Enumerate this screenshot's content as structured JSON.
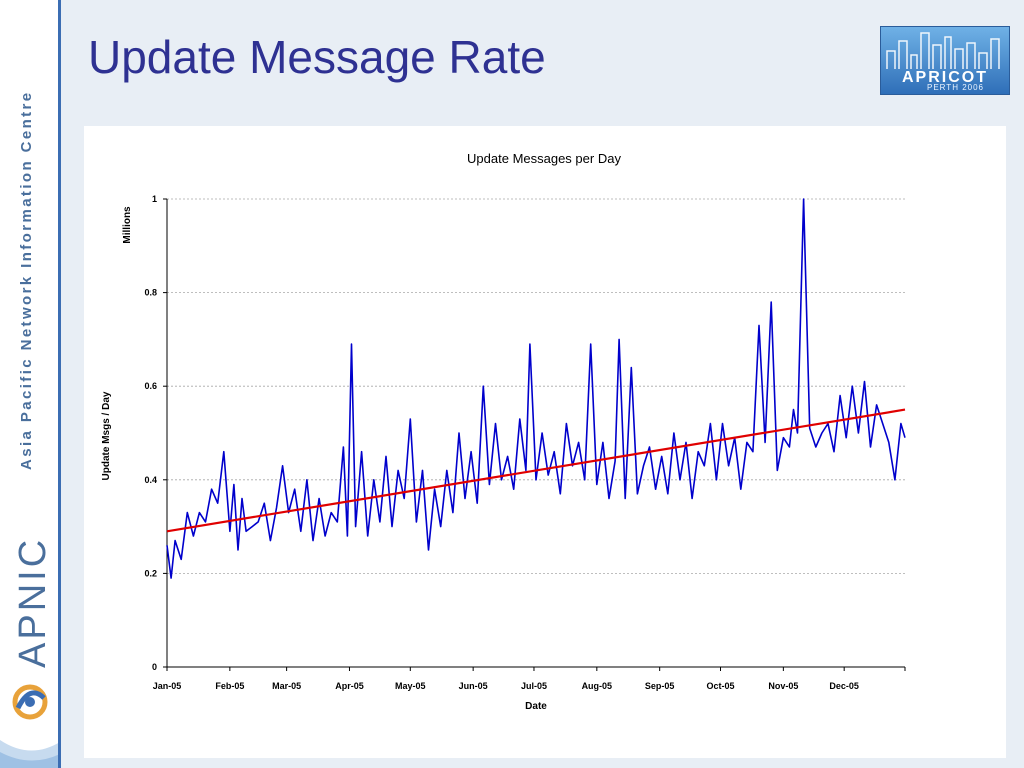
{
  "slide": {
    "title": "Update Message Rate",
    "sidebar_text": "Asia Pacific Network Information Centre",
    "apnic_label": "APNIC",
    "apricot_label": "APRICOT",
    "apricot_sub": "PERTH 2006"
  },
  "colors": {
    "title": "#2e3192",
    "series": "#0000cc",
    "trend": "#e00000",
    "sidebar": "#4a6f9c",
    "rule": "#3b6db3"
  },
  "chart_data": {
    "type": "line",
    "title": "Update Messages per Day",
    "xlabel": "Date",
    "ylabel": "Update Msgs / Day",
    "yunit": "Millions",
    "ylim": [
      0,
      1
    ],
    "yticks": [
      0,
      0.2,
      0.4,
      0.6,
      0.8,
      1
    ],
    "ytick_labels": [
      "0",
      "0.2",
      "0.4",
      "0.6",
      "0.8",
      "1"
    ],
    "xlim": [
      "2005-01-01",
      "2005-12-31"
    ],
    "xticks": [
      "2005-01-01",
      "2005-02-01",
      "2005-03-01",
      "2005-04-01",
      "2005-05-01",
      "2005-06-01",
      "2005-07-01",
      "2005-08-01",
      "2005-09-01",
      "2005-10-01",
      "2005-11-01",
      "2005-12-01"
    ],
    "xtick_labels": [
      "Jan-05",
      "Feb-05",
      "Mar-05",
      "Apr-05",
      "May-05",
      "Jun-05",
      "Jul-05",
      "Aug-05",
      "Sep-05",
      "Oct-05",
      "Nov-05",
      "Dec-05"
    ],
    "grid": "horizontal dashed",
    "series": [
      {
        "x": [
          "2005-01-01",
          "2005-01-03",
          "2005-01-05",
          "2005-01-08",
          "2005-01-11",
          "2005-01-14",
          "2005-01-17",
          "2005-01-20",
          "2005-01-23",
          "2005-01-26",
          "2005-01-29",
          "2005-02-01",
          "2005-02-03",
          "2005-02-05",
          "2005-02-07",
          "2005-02-09",
          "2005-02-12",
          "2005-02-15",
          "2005-02-18",
          "2005-02-21",
          "2005-02-24",
          "2005-02-27",
          "2005-03-02",
          "2005-03-05",
          "2005-03-08",
          "2005-03-11",
          "2005-03-14",
          "2005-03-17",
          "2005-03-20",
          "2005-03-23",
          "2005-03-26",
          "2005-03-29",
          "2005-03-31",
          "2005-04-02",
          "2005-04-04",
          "2005-04-07",
          "2005-04-10",
          "2005-04-13",
          "2005-04-16",
          "2005-04-19",
          "2005-04-22",
          "2005-04-25",
          "2005-04-28",
          "2005-05-01",
          "2005-05-04",
          "2005-05-07",
          "2005-05-10",
          "2005-05-13",
          "2005-05-16",
          "2005-05-19",
          "2005-05-22",
          "2005-05-25",
          "2005-05-28",
          "2005-05-31",
          "2005-06-03",
          "2005-06-06",
          "2005-06-09",
          "2005-06-12",
          "2005-06-15",
          "2005-06-18",
          "2005-06-21",
          "2005-06-24",
          "2005-06-27",
          "2005-06-29",
          "2005-07-02",
          "2005-07-05",
          "2005-07-08",
          "2005-07-11",
          "2005-07-14",
          "2005-07-17",
          "2005-07-20",
          "2005-07-23",
          "2005-07-26",
          "2005-07-29",
          "2005-08-01",
          "2005-08-04",
          "2005-08-07",
          "2005-08-10",
          "2005-08-12",
          "2005-08-15",
          "2005-08-18",
          "2005-08-21",
          "2005-08-24",
          "2005-08-27",
          "2005-08-30",
          "2005-09-02",
          "2005-09-05",
          "2005-09-08",
          "2005-09-11",
          "2005-09-14",
          "2005-09-17",
          "2005-09-20",
          "2005-09-23",
          "2005-09-26",
          "2005-09-29",
          "2005-10-02",
          "2005-10-05",
          "2005-10-08",
          "2005-10-11",
          "2005-10-14",
          "2005-10-17",
          "2005-10-20",
          "2005-10-23",
          "2005-10-26",
          "2005-10-29",
          "2005-11-01",
          "2005-11-04",
          "2005-11-06",
          "2005-11-08",
          "2005-11-11",
          "2005-11-14",
          "2005-11-17",
          "2005-11-20",
          "2005-11-23",
          "2005-11-26",
          "2005-11-29",
          "2005-12-02",
          "2005-12-05",
          "2005-12-08",
          "2005-12-11",
          "2005-12-14",
          "2005-12-17",
          "2005-12-20",
          "2005-12-23",
          "2005-12-26",
          "2005-12-29",
          "2005-12-31"
        ],
        "values": [
          0.26,
          0.19,
          0.27,
          0.23,
          0.33,
          0.28,
          0.33,
          0.31,
          0.38,
          0.35,
          0.46,
          0.29,
          0.39,
          0.25,
          0.36,
          0.29,
          0.3,
          0.31,
          0.35,
          0.27,
          0.34,
          0.43,
          0.33,
          0.38,
          0.29,
          0.4,
          0.27,
          0.36,
          0.28,
          0.33,
          0.31,
          0.47,
          0.28,
          0.69,
          0.3,
          0.46,
          0.28,
          0.4,
          0.31,
          0.45,
          0.3,
          0.42,
          0.36,
          0.53,
          0.31,
          0.42,
          0.25,
          0.38,
          0.3,
          0.42,
          0.33,
          0.5,
          0.36,
          0.46,
          0.35,
          0.6,
          0.39,
          0.52,
          0.4,
          0.45,
          0.38,
          0.53,
          0.42,
          0.69,
          0.4,
          0.5,
          0.41,
          0.46,
          0.37,
          0.52,
          0.43,
          0.48,
          0.4,
          0.69,
          0.39,
          0.48,
          0.36,
          0.44,
          0.7,
          0.36,
          0.64,
          0.37,
          0.43,
          0.47,
          0.38,
          0.45,
          0.37,
          0.5,
          0.4,
          0.48,
          0.36,
          0.46,
          0.43,
          0.52,
          0.4,
          0.52,
          0.43,
          0.49,
          0.38,
          0.48,
          0.46,
          0.73,
          0.48,
          0.78,
          0.42,
          0.49,
          0.47,
          0.55,
          0.5,
          1.0,
          0.51,
          0.47,
          0.5,
          0.52,
          0.46,
          0.58,
          0.49,
          0.6,
          0.5,
          0.61,
          0.47,
          0.56,
          0.52,
          0.48,
          0.4,
          0.52,
          0.49
        ]
      },
      {
        "name": "trend",
        "x": [
          "2005-01-01",
          "2005-12-31"
        ],
        "values": [
          0.29,
          0.55
        ]
      }
    ]
  }
}
